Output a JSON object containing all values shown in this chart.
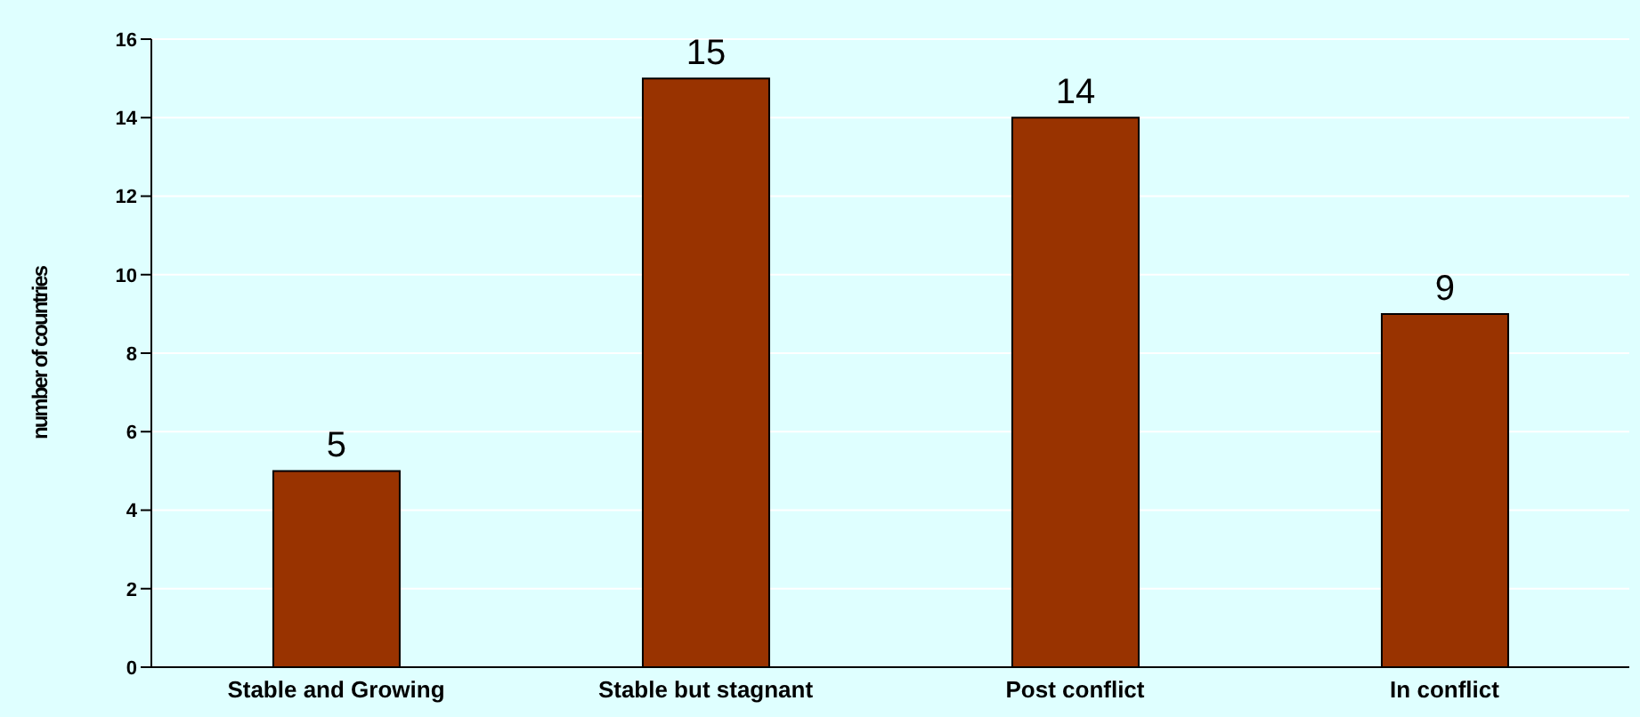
{
  "chart_data": {
    "type": "bar",
    "ylabel": "number of countries",
    "categories": [
      "Stable and Growing",
      "Stable but stagnant",
      "Post conflict",
      "In conflict"
    ],
    "values": [
      5,
      15,
      14,
      9
    ],
    "color": "#993300",
    "ylim": [
      0,
      16
    ],
    "yticks": [
      0,
      2,
      4,
      6,
      8,
      10,
      12,
      14,
      16
    ],
    "grid": "y",
    "data_labels": true
  }
}
